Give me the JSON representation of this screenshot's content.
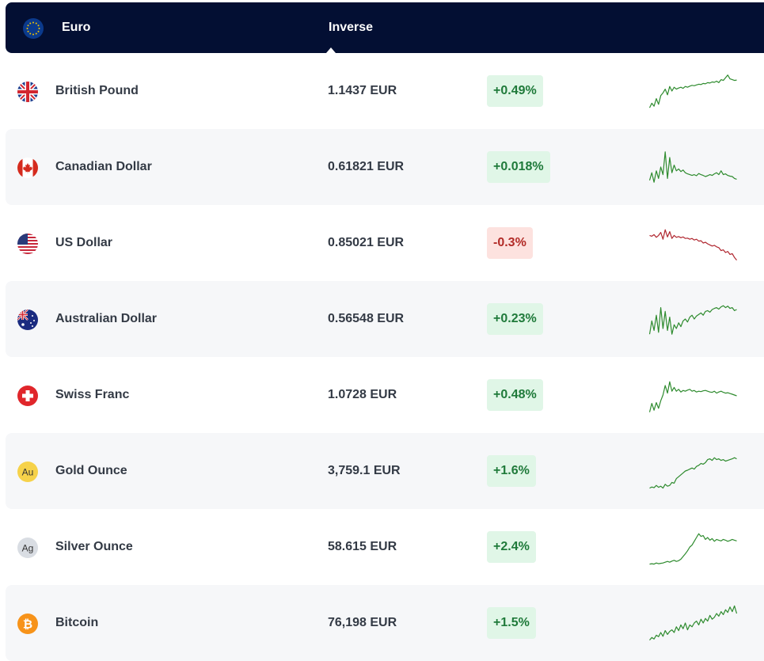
{
  "header": {
    "base_currency": "Euro",
    "column_label": "Inverse",
    "flag_icon": "eu-flag-icon"
  },
  "colors": {
    "header_bg": "#030f33",
    "up_text": "#1f7a3a",
    "up_bg": "#e0f6e7",
    "down_text": "#b22b27",
    "down_bg": "#fde2df",
    "up_line": "#2e8b2e",
    "down_line": "#b0262f"
  },
  "rows": [
    {
      "name": "British Pound",
      "rate": "1.1437 EUR",
      "change": "+0.49%",
      "direction": "up",
      "icon": "uk-flag-icon",
      "trend": [
        0.06,
        0.18,
        0.1,
        0.3,
        0.15,
        0.38,
        0.45,
        0.55,
        0.4,
        0.62,
        0.5,
        0.6,
        0.55,
        0.58,
        0.6,
        0.57,
        0.62,
        0.6,
        0.63,
        0.65,
        0.64,
        0.66,
        0.68,
        0.67,
        0.7,
        0.69,
        0.72,
        0.71,
        0.74,
        0.73,
        0.76,
        0.72,
        0.8,
        0.78,
        0.85,
        0.92,
        0.82,
        0.8,
        0.78,
        0.79
      ]
    },
    {
      "name": "Canadian Dollar",
      "rate": "0.61821 EUR",
      "change": "+0.018%",
      "direction": "up",
      "icon": "canada-flag-icon",
      "trend": [
        0.15,
        0.35,
        0.1,
        0.4,
        0.2,
        0.5,
        0.3,
        0.9,
        0.2,
        0.75,
        0.35,
        0.55,
        0.4,
        0.45,
        0.38,
        0.42,
        0.35,
        0.32,
        0.3,
        0.28,
        0.3,
        0.27,
        0.33,
        0.3,
        0.28,
        0.25,
        0.27,
        0.3,
        0.28,
        0.32,
        0.35,
        0.3,
        0.4,
        0.3,
        0.32,
        0.28,
        0.26,
        0.25,
        0.2,
        0.18
      ]
    },
    {
      "name": "US Dollar",
      "rate": "0.85021 EUR",
      "change": "-0.3%",
      "direction": "down",
      "icon": "us-flag-icon",
      "trend": [
        0.7,
        0.68,
        0.72,
        0.65,
        0.7,
        0.78,
        0.6,
        0.85,
        0.66,
        0.8,
        0.62,
        0.7,
        0.65,
        0.67,
        0.64,
        0.66,
        0.62,
        0.63,
        0.6,
        0.62,
        0.58,
        0.6,
        0.55,
        0.56,
        0.5,
        0.52,
        0.48,
        0.45,
        0.42,
        0.44,
        0.4,
        0.38,
        0.3,
        0.32,
        0.25,
        0.28,
        0.2,
        0.22,
        0.12,
        0.05
      ]
    },
    {
      "name": "Australian Dollar",
      "rate": "0.56548 EUR",
      "change": "+0.23%",
      "direction": "up",
      "icon": "australia-flag-icon",
      "trend": [
        0.1,
        0.45,
        0.2,
        0.6,
        0.15,
        0.8,
        0.25,
        0.7,
        0.2,
        0.55,
        0.1,
        0.35,
        0.25,
        0.4,
        0.3,
        0.45,
        0.5,
        0.42,
        0.55,
        0.6,
        0.5,
        0.58,
        0.62,
        0.66,
        0.6,
        0.7,
        0.72,
        0.68,
        0.75,
        0.78,
        0.8,
        0.76,
        0.82,
        0.85,
        0.8,
        0.84,
        0.78,
        0.8,
        0.72,
        0.75
      ]
    },
    {
      "name": "Swiss Franc",
      "rate": "1.0728 EUR",
      "change": "+0.48%",
      "direction": "up",
      "icon": "swiss-flag-icon",
      "trend": [
        0.05,
        0.28,
        0.1,
        0.3,
        0.15,
        0.35,
        0.5,
        0.75,
        0.55,
        0.85,
        0.6,
        0.7,
        0.6,
        0.65,
        0.58,
        0.62,
        0.6,
        0.63,
        0.65,
        0.6,
        0.62,
        0.58,
        0.6,
        0.59,
        0.61,
        0.62,
        0.6,
        0.58,
        0.57,
        0.6,
        0.55,
        0.58,
        0.6,
        0.57,
        0.55,
        0.56,
        0.54,
        0.52,
        0.5,
        0.48
      ]
    },
    {
      "name": "Gold Ounce",
      "rate": "3,759.1 EUR",
      "change": "+1.6%",
      "direction": "up",
      "icon": "gold-au-icon",
      "trend": [
        0.05,
        0.08,
        0.06,
        0.12,
        0.07,
        0.1,
        0.05,
        0.15,
        0.1,
        0.12,
        0.2,
        0.18,
        0.3,
        0.35,
        0.4,
        0.45,
        0.5,
        0.52,
        0.55,
        0.58,
        0.55,
        0.62,
        0.65,
        0.7,
        0.68,
        0.72,
        0.8,
        0.82,
        0.78,
        0.85,
        0.8,
        0.82,
        0.78,
        0.8,
        0.76,
        0.78,
        0.8,
        0.82,
        0.85,
        0.82
      ]
    },
    {
      "name": "Silver Ounce",
      "rate": "58.615 EUR",
      "change": "+2.4%",
      "direction": "up",
      "icon": "silver-ag-icon",
      "trend": [
        0.05,
        0.06,
        0.05,
        0.08,
        0.06,
        0.07,
        0.08,
        0.1,
        0.12,
        0.1,
        0.13,
        0.15,
        0.12,
        0.14,
        0.18,
        0.25,
        0.32,
        0.4,
        0.5,
        0.55,
        0.65,
        0.75,
        0.85,
        0.78,
        0.8,
        0.7,
        0.75,
        0.68,
        0.72,
        0.65,
        0.7,
        0.68,
        0.66,
        0.7,
        0.68,
        0.65,
        0.67,
        0.7,
        0.68,
        0.66
      ]
    },
    {
      "name": "Bitcoin",
      "rate": "76,198 EUR",
      "change": "+1.5%",
      "direction": "up",
      "icon": "bitcoin-icon",
      "trend": [
        0.05,
        0.12,
        0.08,
        0.18,
        0.14,
        0.25,
        0.15,
        0.3,
        0.2,
        0.28,
        0.32,
        0.25,
        0.4,
        0.3,
        0.45,
        0.35,
        0.5,
        0.32,
        0.45,
        0.4,
        0.5,
        0.55,
        0.45,
        0.6,
        0.5,
        0.62,
        0.55,
        0.7,
        0.6,
        0.65,
        0.75,
        0.68,
        0.8,
        0.72,
        0.85,
        0.78,
        0.92,
        0.8,
        0.95,
        0.75
      ]
    }
  ]
}
